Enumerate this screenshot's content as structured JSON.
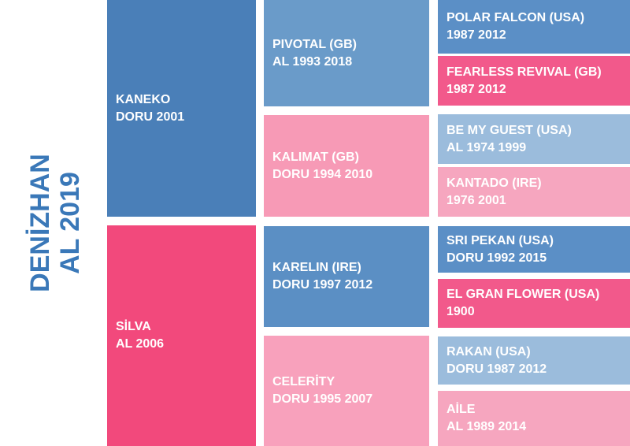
{
  "title": [
    "DENİZHAN",
    "AL 2019"
  ],
  "generations": [
    [
      {
        "name": "KANEKO",
        "detail": "DORU 2001"
      },
      {
        "name": "SİLVA",
        "detail": "AL 2006"
      }
    ],
    [
      {
        "name": "PIVOTAL (GB)",
        "detail": "AL 1993 2018"
      },
      {
        "name": "KALIMAT (GB)",
        "detail": "DORU 1994 2010"
      },
      {
        "name": "KARELIN (IRE)",
        "detail": "DORU 1997 2012"
      },
      {
        "name": "CELERİTY",
        "detail": "DORU 1995 2007"
      }
    ],
    [
      {
        "name": "POLAR FALCON (USA)",
        "detail": "1987 2012"
      },
      {
        "name": "FEARLESS REVIVAL (GB)",
        "detail": "1987 2012"
      },
      {
        "name": "BE MY GUEST (USA)",
        "detail": "AL 1974 1999"
      },
      {
        "name": "KANTADO (IRE)",
        "detail": "1976 2001"
      },
      {
        "name": "SRI PEKAN (USA)",
        "detail": "DORU 1992 2015"
      },
      {
        "name": "EL GRAN FLOWER (USA)",
        "detail": "1900"
      },
      {
        "name": "RAKAN (USA)",
        "detail": "DORU 1987 2012"
      },
      {
        "name": "AİLE",
        "detail": "AL 1989 2014"
      }
    ]
  ]
}
